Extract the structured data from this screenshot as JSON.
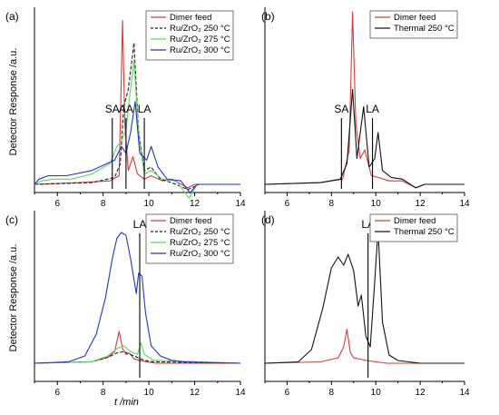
{
  "figure": {
    "ylabel_top": "Detector Response /a.u.",
    "ylabel_bottom": "Detector Response /a.u.",
    "xlabel_bottom": "t /min"
  },
  "colors": {
    "dimer": "#d23c3c",
    "ru250": "#222222",
    "ru275": "#5fd45f",
    "ru300": "#2233cc",
    "thermal": "#111111",
    "marker": "#000000"
  },
  "chart_data": [
    {
      "type": "line",
      "panel_label": "(a)",
      "xlim": [
        5,
        14
      ],
      "xticks": [
        6,
        8,
        10,
        12,
        14
      ],
      "ylabel": "Detector Response /a.u.",
      "legend": {
        "placement": "top-right",
        "entries": [
          "Dimer feed",
          "Ru/ZrO₂ 250 °C",
          "Ru/ZrO₂ 275 °C",
          "Ru/ZrO₂ 300 °C"
        ]
      },
      "markers": [
        {
          "label": "SA",
          "x": 8.4
        },
        {
          "label": "AA",
          "x": 9.0
        },
        {
          "label": "LA",
          "x": 9.8
        }
      ],
      "series": [
        {
          "name": "Dimer feed",
          "style": "solid",
          "x": [
            5,
            7.0,
            8.3,
            8.7,
            8.85,
            8.95,
            9.1,
            9.3,
            9.5,
            9.8,
            10.1,
            10.6,
            11.0,
            11.7,
            12.0,
            12.5,
            14
          ],
          "y": [
            0,
            0.01,
            0.02,
            0.05,
            0.95,
            0.35,
            0.08,
            0.16,
            0.06,
            0.03,
            0.05,
            0.02,
            0.03,
            -0.02,
            0.0,
            0.0,
            0
          ]
        },
        {
          "name": "Ru/ZrO₂ 250 °C",
          "style": "dashed",
          "x": [
            5,
            7.5,
            8.5,
            8.75,
            8.9,
            9.1,
            9.35,
            9.55,
            9.8,
            10.1,
            10.5,
            11.0,
            11.7,
            12.2,
            14
          ],
          "y": [
            0,
            0.01,
            0.04,
            0.12,
            0.45,
            0.55,
            0.82,
            0.3,
            0.08,
            0.1,
            0.03,
            0.01,
            -0.03,
            0.0,
            0
          ]
        },
        {
          "name": "Ru/ZrO₂ 275 °C",
          "style": "solid",
          "x": [
            5,
            5.3,
            5.8,
            6.6,
            7.5,
            8.3,
            8.6,
            8.8,
            9.0,
            9.15,
            9.35,
            9.55,
            9.8,
            10.1,
            10.6,
            11.2,
            11.75,
            12.1,
            14
          ],
          "y": [
            0,
            0.02,
            0.03,
            0.03,
            0.06,
            0.12,
            0.22,
            0.25,
            0.32,
            0.5,
            0.72,
            0.28,
            0.06,
            0.08,
            0.03,
            0.02,
            -0.08,
            0.0,
            0
          ]
        },
        {
          "name": "Ru/ZrO₂ 300 °C",
          "style": "solid",
          "x": [
            5,
            5.2,
            5.6,
            6.4,
            7.5,
            8.5,
            8.8,
            9.0,
            9.2,
            9.4,
            9.6,
            9.9,
            10.1,
            10.4,
            10.8,
            11.4,
            11.8,
            12.1,
            14
          ],
          "y": [
            0,
            0.03,
            0.05,
            0.05,
            0.08,
            0.14,
            0.22,
            0.18,
            0.3,
            0.48,
            0.18,
            0.14,
            0.22,
            0.1,
            0.03,
            0.02,
            -0.05,
            0.0,
            0
          ]
        }
      ]
    },
    {
      "type": "line",
      "panel_label": "(b)",
      "xlim": [
        5,
        14
      ],
      "xticks": [
        6,
        8,
        10,
        12,
        14
      ],
      "legend": {
        "placement": "top-right",
        "entries": [
          "Dimer feed",
          "Thermal 250 °C"
        ]
      },
      "markers": [
        {
          "label": "SA",
          "x": 8.45
        },
        {
          "label": "LA",
          "x": 9.85
        }
      ],
      "series": [
        {
          "name": "Dimer feed",
          "x": [
            5,
            7.5,
            8.5,
            8.8,
            8.95,
            9.1,
            9.3,
            9.5,
            9.8,
            10.1,
            10.6,
            11.2,
            11.8,
            12.2,
            14
          ],
          "y": [
            0,
            0.01,
            0.03,
            0.2,
            1.0,
            0.35,
            0.15,
            0.2,
            0.05,
            0.04,
            0.02,
            0.02,
            -0.02,
            0.0,
            0
          ]
        },
        {
          "name": "Thermal 250 °C",
          "x": [
            5,
            7.5,
            8.4,
            8.7,
            8.95,
            9.15,
            9.45,
            9.7,
            9.95,
            10.1,
            10.3,
            10.7,
            11.2,
            11.8,
            12.2,
            14
          ],
          "y": [
            0,
            0.01,
            0.03,
            0.12,
            0.55,
            0.15,
            0.45,
            0.1,
            0.15,
            0.3,
            0.08,
            0.04,
            0.03,
            -0.02,
            0.0,
            0
          ]
        }
      ]
    },
    {
      "type": "line",
      "panel_label": "(c)",
      "xlim": [
        5,
        14
      ],
      "xticks": [
        6,
        8,
        10,
        12,
        14
      ],
      "xlabel": "t /min",
      "ylabel": "Detector Response /a.u.",
      "legend": {
        "placement": "top-right",
        "entries": [
          "Dimer feed",
          "Ru/ZrO₂ 250 °C",
          "Ru/ZrO₂ 275 °C",
          "Ru/ZrO₂ 300 °C"
        ]
      },
      "markers": [
        {
          "label": "LA",
          "x": 9.6
        }
      ],
      "series": [
        {
          "name": "Dimer feed",
          "style": "solid",
          "x": [
            5,
            7.5,
            8.2,
            8.5,
            8.7,
            8.85,
            9.0,
            9.15,
            9.35,
            9.6,
            9.9,
            10.3,
            14
          ],
          "y": [
            0,
            0.01,
            0.04,
            0.08,
            0.22,
            0.1,
            0.06,
            0.07,
            0.03,
            0.02,
            0.01,
            0.0,
            0
          ]
        },
        {
          "name": "Ru/ZrO₂ 250 °C",
          "style": "dashed",
          "x": [
            5,
            7.5,
            8.2,
            8.6,
            8.9,
            9.2,
            9.5,
            9.8,
            10.2,
            14
          ],
          "y": [
            0,
            0.01,
            0.04,
            0.07,
            0.08,
            0.06,
            0.04,
            0.02,
            0.01,
            0
          ]
        },
        {
          "name": "Ru/ZrO₂ 275 °C",
          "style": "solid",
          "x": [
            5,
            7.5,
            8.2,
            8.6,
            8.9,
            9.2,
            9.5,
            9.65,
            9.8,
            10.2,
            14
          ],
          "y": [
            0,
            0.01,
            0.05,
            0.1,
            0.12,
            0.08,
            0.06,
            0.14,
            0.06,
            0.02,
            0
          ]
        },
        {
          "name": "Ru/ZrO₂ 300 °C",
          "style": "solid",
          "x": [
            5,
            6.5,
            7.2,
            7.7,
            8.1,
            8.4,
            8.6,
            8.8,
            9.0,
            9.2,
            9.45,
            9.55,
            9.7,
            9.85,
            10.1,
            10.5,
            11.0,
            11.5,
            14
          ],
          "y": [
            0,
            0.01,
            0.05,
            0.2,
            0.45,
            0.72,
            0.86,
            0.9,
            0.88,
            0.72,
            0.48,
            0.62,
            0.6,
            0.35,
            0.12,
            0.05,
            0.02,
            0.01,
            0
          ]
        }
      ]
    },
    {
      "type": "line",
      "panel_label": "(d)",
      "xlim": [
        5,
        14
      ],
      "xticks": [
        6,
        8,
        10,
        12,
        14
      ],
      "legend": {
        "placement": "top-right",
        "entries": [
          "Dimer feed",
          "Thermal 250 °C"
        ]
      },
      "markers": [
        {
          "label": "LA",
          "x": 9.65
        }
      ],
      "series": [
        {
          "name": "Dimer feed",
          "x": [
            5,
            7.5,
            8.3,
            8.55,
            8.7,
            8.85,
            9.0,
            9.3,
            9.6,
            10.0,
            10.5,
            14
          ],
          "y": [
            0,
            0.01,
            0.04,
            0.12,
            0.25,
            0.08,
            0.04,
            0.03,
            0.02,
            0.01,
            0.0,
            0
          ]
        },
        {
          "name": "Thermal 250 °C",
          "x": [
            5,
            6.5,
            7.1,
            7.6,
            8.0,
            8.3,
            8.55,
            8.75,
            9.0,
            9.2,
            9.35,
            9.55,
            9.75,
            9.95,
            10.1,
            10.3,
            10.6,
            11.0,
            12.0,
            14
          ],
          "y": [
            0,
            0.01,
            0.1,
            0.4,
            0.7,
            0.78,
            0.72,
            0.8,
            0.68,
            0.42,
            0.5,
            0.2,
            0.12,
            0.6,
            0.98,
            0.3,
            0.06,
            0.02,
            0.0,
            0
          ]
        }
      ]
    }
  ]
}
